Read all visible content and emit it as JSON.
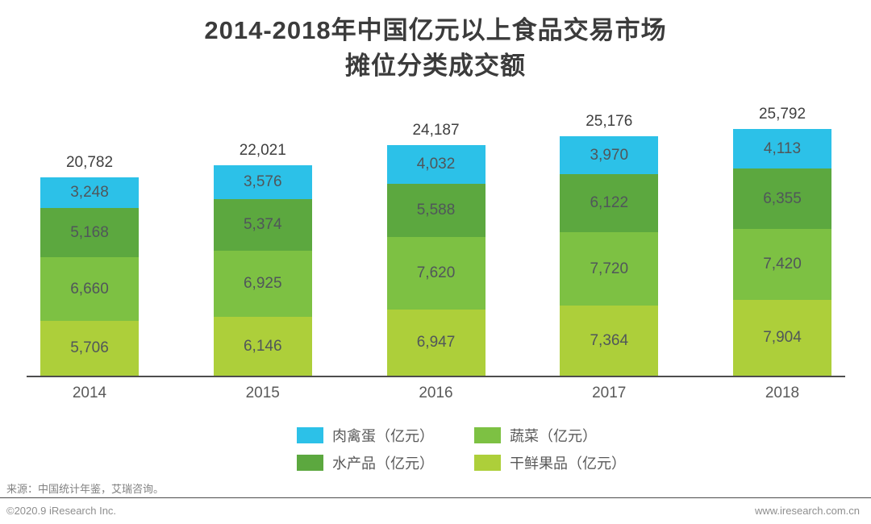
{
  "title": {
    "line1": "2014-2018年中国亿元以上食品交易市场",
    "line2": "摊位分类成交额"
  },
  "chart_data": {
    "type": "bar",
    "stacked": true,
    "categories": [
      "2014",
      "2015",
      "2016",
      "2017",
      "2018"
    ],
    "series": [
      {
        "name": "肉禽蛋（亿元）",
        "color": "#2cc1e8",
        "values": [
          3248,
          3576,
          4032,
          3970,
          4113
        ]
      },
      {
        "name": "水产品（亿元）",
        "color": "#5ca83f",
        "values": [
          5168,
          5374,
          5588,
          6122,
          6355
        ]
      },
      {
        "name": "蔬菜（亿元）",
        "color": "#7dc143",
        "values": [
          6660,
          6925,
          7620,
          7720,
          7420
        ]
      },
      {
        "name": "干鲜果品（亿元）",
        "color": "#adcf3a",
        "values": [
          5706,
          6146,
          6947,
          7364,
          7904
        ]
      }
    ],
    "totals": [
      20782,
      22021,
      24187,
      25176,
      25792
    ],
    "title": "2014-2018年中国亿元以上食品交易市场摊位分类成交额",
    "xlabel": "",
    "ylabel": "",
    "unit": "亿元",
    "grid": false,
    "legend_position": "bottom",
    "note": "series listed top-to-bottom as stacked in each bar"
  },
  "legend": {
    "items": [
      {
        "label": "肉禽蛋（亿元）",
        "color": "#2cc1e8"
      },
      {
        "label": "蔬菜（亿元）",
        "color": "#7dc143"
      },
      {
        "label": "水产品（亿元）",
        "color": "#5ca83f"
      },
      {
        "label": "干鲜果品（亿元）",
        "color": "#adcf3a"
      }
    ]
  },
  "footer": {
    "source": "来源：中国统计年鉴，艾瑞咨询。",
    "copyright": "©2020.9 iResearch Inc.",
    "url": "www.iresearch.com.cn"
  }
}
